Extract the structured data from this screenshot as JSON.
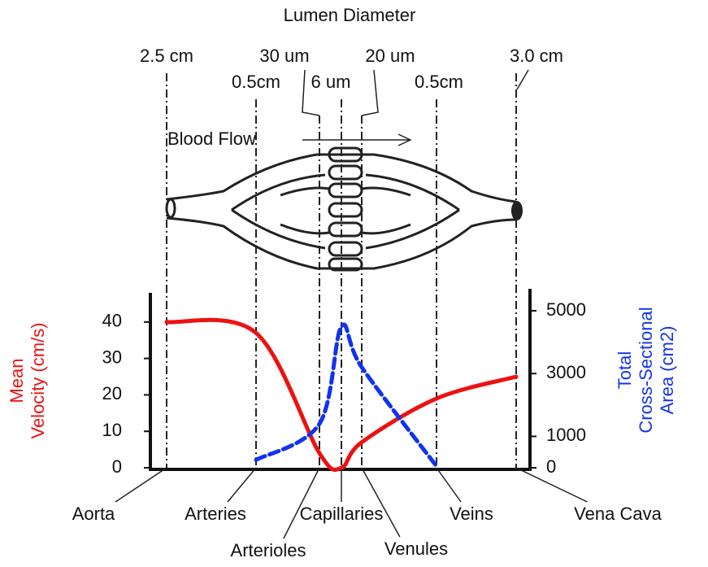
{
  "chart_data": {
    "type": "line",
    "title": "Lumen Diameter",
    "annotation": "Blood Flow",
    "categories": [
      "Aorta",
      "Arteries",
      "Arterioles",
      "Capillaries",
      "Venules",
      "Veins",
      "Vena Cava"
    ],
    "diameter_labels": [
      "2.5 cm",
      "0.5cm",
      "30 um",
      "6 um",
      "20 um",
      "0.5cm",
      "3.0 cm"
    ],
    "y_label": [
      "Mean",
      "Velocity (cm/s)"
    ],
    "y2_label": [
      "Total",
      "Cross-Sectional",
      "Area (cm2)"
    ],
    "series": [
      {
        "name": "Mean Velocity (cm/s)",
        "color": "#ee1111",
        "values": [
          40,
          37,
          4,
          0,
          7,
          19,
          25
        ]
      },
      {
        "name": "Total Cross-Sectional Area (cm2)",
        "color": "#1133ee",
        "axis": "y2",
        "values": [
          null,
          250,
          1400,
          4500,
          3200,
          50,
          null
        ]
      }
    ],
    "ylim": [
      0,
      48
    ],
    "yticks": [
      0,
      10,
      20,
      30,
      40
    ],
    "y2lim": [
      0,
      5570
    ],
    "y2ticks": [
      0,
      1000,
      3000,
      5000
    ]
  }
}
